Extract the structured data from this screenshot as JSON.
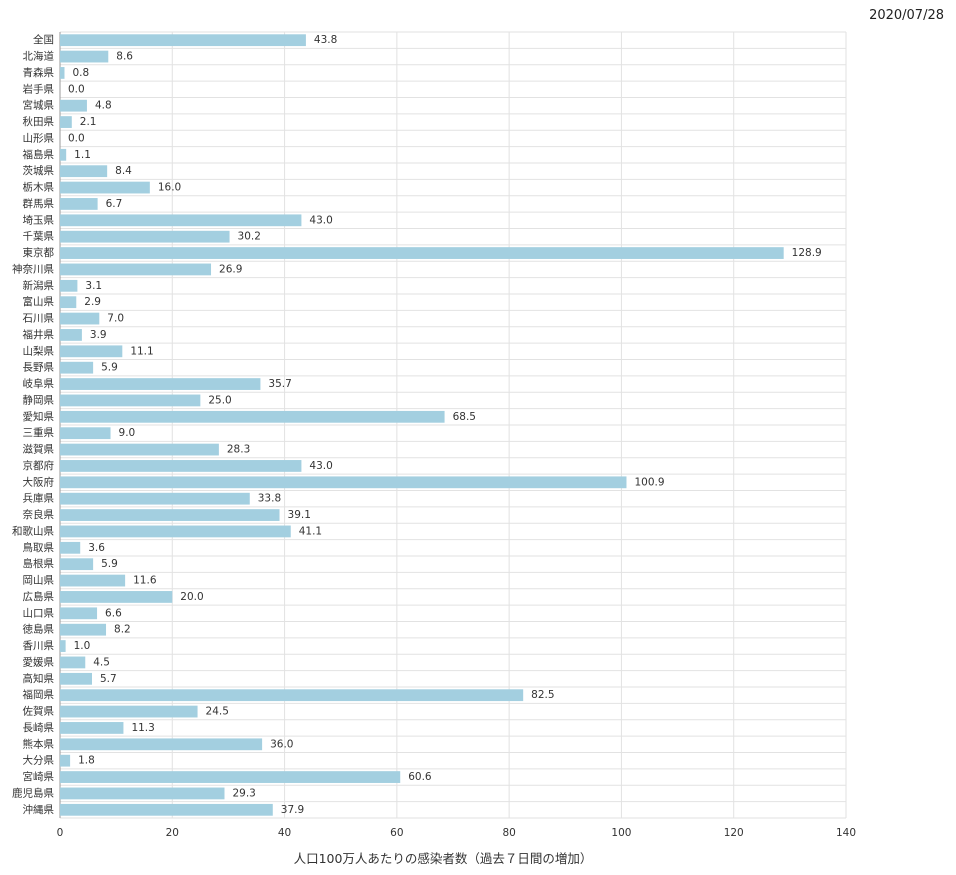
{
  "header": {
    "date": "2020/07/28"
  },
  "chart_data": {
    "type": "bar",
    "orientation": "horizontal",
    "title": "",
    "xlabel": "人口100万人あたりの感染者数（過去７日間の増加）",
    "ylabel": "",
    "xlim": [
      0,
      140
    ],
    "x_ticks": [
      0,
      20,
      40,
      60,
      80,
      100,
      120,
      140
    ],
    "grid": true,
    "bar_color": "#a3cfe0",
    "categories": [
      "全国",
      "北海道",
      "青森県",
      "岩手県",
      "宮城県",
      "秋田県",
      "山形県",
      "福島県",
      "茨城県",
      "栃木県",
      "群馬県",
      "埼玉県",
      "千葉県",
      "東京都",
      "神奈川県",
      "新潟県",
      "富山県",
      "石川県",
      "福井県",
      "山梨県",
      "長野県",
      "岐阜県",
      "静岡県",
      "愛知県",
      "三重県",
      "滋賀県",
      "京都府",
      "大阪府",
      "兵庫県",
      "奈良県",
      "和歌山県",
      "鳥取県",
      "島根県",
      "岡山県",
      "広島県",
      "山口県",
      "徳島県",
      "香川県",
      "愛媛県",
      "高知県",
      "福岡県",
      "佐賀県",
      "長崎県",
      "熊本県",
      "大分県",
      "宮崎県",
      "鹿児島県",
      "沖縄県"
    ],
    "values": [
      43.8,
      8.6,
      0.8,
      0.0,
      4.8,
      2.1,
      0.0,
      1.1,
      8.4,
      16.0,
      6.7,
      43.0,
      30.2,
      128.9,
      26.9,
      3.1,
      2.9,
      7.0,
      3.9,
      11.1,
      5.9,
      35.7,
      25.0,
      68.5,
      9.0,
      28.3,
      43.0,
      100.9,
      33.8,
      39.1,
      41.1,
      3.6,
      5.9,
      11.6,
      20.0,
      6.6,
      8.2,
      1.0,
      4.5,
      5.7,
      82.5,
      24.5,
      11.3,
      36.0,
      1.8,
      60.6,
      29.3,
      37.9
    ],
    "value_labels": [
      "43.8",
      "8.6",
      "0.8",
      "0.0",
      "4.8",
      "2.1",
      "0.0",
      "1.1",
      "8.4",
      "16.0",
      "6.7",
      "43.0",
      "30.2",
      "128.9",
      "26.9",
      "3.1",
      "2.9",
      "7.0",
      "3.9",
      "11.1",
      "5.9",
      "35.7",
      "25.0",
      "68.5",
      "9.0",
      "28.3",
      "43.0",
      "100.9",
      "33.8",
      "39.1",
      "41.1",
      "3.6",
      "5.9",
      "11.6",
      "20.0",
      "6.6",
      "8.2",
      "1.0",
      "4.5",
      "5.7",
      "82.5",
      "24.5",
      "11.3",
      "36.0",
      "1.8",
      "60.6",
      "29.3",
      "37.9"
    ]
  }
}
